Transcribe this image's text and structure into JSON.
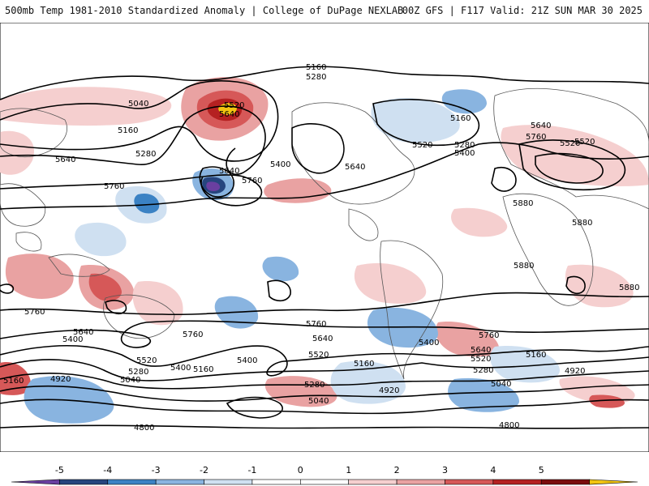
{
  "header": {
    "left_title": "500mb Temp 1981-2010 Standardized Anomaly | College of DuPage NEXLAB",
    "right_title": "00Z GFS | F117 Valid: 21Z SUN MAR 30 2025"
  },
  "map": {
    "contour_labels": [
      "5160",
      "5280",
      "5040",
      "5520",
      "5640",
      "5160",
      "5280",
      "5640",
      "5760",
      "5400",
      "5640",
      "5760",
      "5160",
      "5520",
      "5400",
      "5280",
      "5640",
      "5760",
      "5520",
      "5880",
      "5880",
      "5880",
      "5880",
      "5760",
      "5760",
      "5760",
      "5640",
      "5400",
      "5520",
      "5280",
      "5160",
      "5040",
      "4920",
      "5160",
      "5400",
      "5640",
      "5520",
      "5280",
      "5040",
      "4920",
      "5760",
      "5640",
      "5400",
      "5520",
      "5280",
      "5160",
      "5040",
      "4920",
      "4800",
      "4800",
      "5160",
      "5400",
      "5640",
      "5520"
    ],
    "colors": {
      "neg5": "#6a3fa0",
      "neg4": "#26457e",
      "neg3": "#3b82c4",
      "neg2": "#89b4e0",
      "neg1": "#cfe0f1",
      "pos1": "#f5cfcf",
      "pos2": "#e9a2a2",
      "pos3": "#d65858",
      "pos4": "#b52121",
      "pos5": "#f2c511",
      "land_outline": "#555555",
      "contour": "#000000"
    }
  },
  "colorbar": {
    "ticks": [
      "-5",
      "-4",
      "-3",
      "-2",
      "-1",
      "0",
      "1",
      "2",
      "3",
      "4",
      "5"
    ],
    "colors": [
      "#6a3fa0",
      "#26457e",
      "#3b82c4",
      "#89b4e0",
      "#cfe0f1",
      "#ffffff",
      "#ffffff",
      "#f5cfcf",
      "#e9a2a2",
      "#d65858",
      "#b52121",
      "#7a0d0d",
      "#f2c511"
    ]
  }
}
